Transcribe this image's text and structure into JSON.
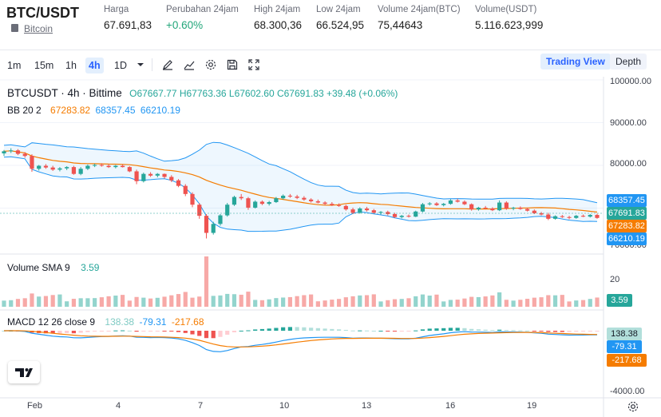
{
  "header": {
    "pair": "BTC/USDT",
    "coin_link": "Bitcoin",
    "stats": [
      {
        "label": "Harga",
        "value": "67.691,83",
        "color": "#1e1e1e"
      },
      {
        "label": "Perubahan 24jam",
        "value": "+0.60%",
        "color": "#22a67a"
      },
      {
        "label": "High 24jam",
        "value": "68.300,36",
        "color": "#1e1e1e"
      },
      {
        "label": "Low 24jam",
        "value": "66.524,95",
        "color": "#1e1e1e"
      },
      {
        "label": "Volume 24jam(BTC)",
        "value": "75,44643",
        "color": "#1e1e1e"
      },
      {
        "label": "Volume(USDT)",
        "value": "5.116.623,999",
        "color": "#1e1e1e"
      }
    ]
  },
  "toolbar": {
    "timeframes": [
      "1m",
      "15m",
      "1h",
      "4h",
      "1D"
    ],
    "active_timeframe": "4h",
    "trading_view": "Trading View",
    "depth": "Depth"
  },
  "legend": {
    "symbol": "BTCUSDT · 4h · Bittime",
    "ohlc": "O67667.77  H67763.36  L67602.60  C67691.83  +39.48 (+0.06%)",
    "bb_label": "BB 20 2",
    "bb_mid": "67283.82",
    "bb_upper": "68357.45",
    "bb_lower": "66210.19",
    "volume_label": "Volume SMA 9",
    "volume_value": "3.59",
    "macd_label": "MACD 12 26 close 9",
    "macd_hist": "138.38",
    "macd_line": "-79.31",
    "macd_signal": "-217.68"
  },
  "price_axis": [
    "100000.00",
    "90000.00",
    "80000.00",
    "70000.00"
  ],
  "price_labels": [
    {
      "value": "68357.45",
      "color": "#2196f3"
    },
    {
      "value": "67691.83",
      "color": "#26a69a"
    },
    {
      "value": "67283.82",
      "color": "#f57c00"
    },
    {
      "value": "66210.19",
      "color": "#2196f3"
    }
  ],
  "volume_axis": [
    "20"
  ],
  "volume_label_value": "3.59",
  "macd_axis": [
    "-4000.00"
  ],
  "macd_labels": [
    {
      "value": "138.38",
      "color": "#b2dfdb",
      "text": "#131722"
    },
    {
      "value": "-79.31",
      "color": "#2196f3",
      "text": "#ffffff"
    },
    {
      "value": "-217.68",
      "color": "#f57c00",
      "text": "#ffffff"
    }
  ],
  "time_axis": [
    "Feb",
    "4",
    "7",
    "10",
    "13",
    "16",
    "19"
  ],
  "colors": {
    "up": "#26a69a",
    "down": "#ef5350",
    "bb": "#2196f3",
    "mid": "#f57c00"
  },
  "chart_data": {
    "type": "candlestick",
    "symbol": "BTCUSDT",
    "interval": "4h",
    "ylim": [
      60000,
      100000
    ],
    "candles": [
      [
        82800,
        83600,
        82200,
        83300
      ],
      [
        83300,
        84000,
        82900,
        83500
      ],
      [
        83500,
        83800,
        82400,
        82700
      ],
      [
        82700,
        83100,
        81800,
        82200
      ],
      [
        82200,
        82600,
        78500,
        79200
      ],
      [
        79200,
        80100,
        78800,
        79900
      ],
      [
        79900,
        80300,
        79200,
        79500
      ],
      [
        79500,
        79900,
        78700,
        79000
      ],
      [
        79000,
        79600,
        78600,
        79300
      ],
      [
        79300,
        79800,
        78900,
        79600
      ],
      [
        79600,
        79900,
        77800,
        78000
      ],
      [
        78000,
        79600,
        77700,
        79200
      ],
      [
        79200,
        80200,
        78900,
        79900
      ],
      [
        79900,
        80400,
        79600,
        80100
      ],
      [
        80100,
        80500,
        79700,
        79900
      ],
      [
        79900,
        80300,
        79400,
        79600
      ],
      [
        79600,
        80100,
        79300,
        79900
      ],
      [
        79900,
        80200,
        79500,
        79600
      ],
      [
        79600,
        79800,
        78400,
        78600
      ],
      [
        78600,
        79000,
        75600,
        76300
      ],
      [
        76300,
        78300,
        76000,
        78000
      ],
      [
        78000,
        78400,
        77300,
        77600
      ],
      [
        77600,
        78200,
        77200,
        78000
      ],
      [
        78000,
        78100,
        76900,
        77300
      ],
      [
        77300,
        77700,
        76100,
        76500
      ],
      [
        76500,
        76800,
        74900,
        75200
      ],
      [
        75200,
        75600,
        72800,
        73300
      ],
      [
        73300,
        73700,
        70200,
        70800
      ],
      [
        70800,
        71200,
        67500,
        68200
      ],
      [
        68200,
        68600,
        62900,
        64200
      ],
      [
        64200,
        66800,
        63800,
        66300
      ],
      [
        66300,
        68600,
        65900,
        68300
      ],
      [
        68300,
        71200,
        68000,
        70800
      ],
      [
        70800,
        72900,
        70500,
        72600
      ],
      [
        72600,
        73300,
        71900,
        72300
      ],
      [
        72300,
        72600,
        69600,
        70100
      ],
      [
        70100,
        71800,
        69900,
        71500
      ],
      [
        71500,
        71800,
        70700,
        71000
      ],
      [
        71000,
        71700,
        70600,
        71400
      ],
      [
        71400,
        72600,
        71200,
        72300
      ],
      [
        72300,
        73200,
        72000,
        72900
      ],
      [
        72900,
        73300,
        72400,
        72700
      ],
      [
        72700,
        73100,
        72100,
        72400
      ],
      [
        72400,
        72800,
        71700,
        72000
      ],
      [
        72000,
        72300,
        71300,
        71600
      ],
      [
        71600,
        72000,
        71100,
        71300
      ],
      [
        71300,
        71600,
        70700,
        71000
      ],
      [
        71000,
        71400,
        70500,
        70700
      ],
      [
        70700,
        71100,
        70300,
        70500
      ],
      [
        70500,
        70800,
        69400,
        69700
      ],
      [
        69700,
        70100,
        68600,
        68900
      ],
      [
        68900,
        70200,
        68700,
        69900
      ],
      [
        69900,
        70300,
        69200,
        69500
      ],
      [
        69500,
        69800,
        68700,
        68900
      ],
      [
        68900,
        69300,
        68500,
        69100
      ],
      [
        69100,
        69400,
        68300,
        68600
      ],
      [
        68600,
        68900,
        67700,
        67900
      ],
      [
        67900,
        68400,
        67600,
        68200
      ],
      [
        68200,
        68500,
        67800,
        68000
      ],
      [
        68000,
        69400,
        67900,
        69200
      ],
      [
        69200,
        71200,
        69000,
        70900
      ],
      [
        70900,
        71400,
        70600,
        71100
      ],
      [
        71100,
        71400,
        70500,
        70700
      ],
      [
        70700,
        71200,
        70400,
        71000
      ],
      [
        71000,
        72100,
        70800,
        71800
      ],
      [
        71800,
        72200,
        71300,
        71500
      ],
      [
        71500,
        71800,
        70700,
        70900
      ],
      [
        70900,
        71100,
        69400,
        69700
      ],
      [
        69700,
        70300,
        69400,
        70100
      ],
      [
        70100,
        70500,
        69700,
        69900
      ],
      [
        69900,
        70200,
        69300,
        69500
      ],
      [
        69500,
        71800,
        69300,
        71300
      ],
      [
        71300,
        71600,
        69600,
        69900
      ],
      [
        69900,
        70300,
        69500,
        70100
      ],
      [
        70100,
        70400,
        69600,
        69800
      ],
      [
        69800,
        70100,
        69200,
        69400
      ],
      [
        69400,
        69700,
        68600,
        68800
      ],
      [
        68800,
        69100,
        68300,
        68500
      ],
      [
        68500,
        68900,
        67200,
        67500
      ],
      [
        67500,
        68300,
        67300,
        68100
      ],
      [
        68100,
        68400,
        67700,
        67900
      ],
      [
        67900,
        68200,
        67400,
        67700
      ],
      [
        67700,
        68400,
        67500,
        68200
      ],
      [
        68200,
        68500,
        67900,
        68000
      ],
      [
        68000,
        68600,
        67800,
        68400
      ],
      [
        68400,
        68700,
        67500,
        67700
      ]
    ]
  }
}
